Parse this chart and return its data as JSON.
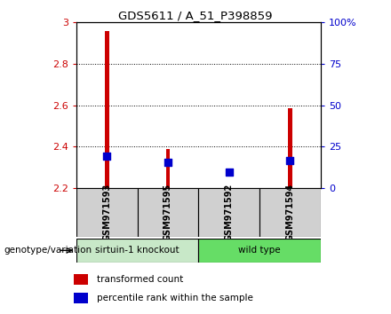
{
  "title": "GDS5611 / A_51_P398859",
  "samples": [
    "GSM971593",
    "GSM971595",
    "GSM971592",
    "GSM971594"
  ],
  "red_values": [
    2.955,
    2.39,
    2.195,
    2.585
  ],
  "blue_values": [
    2.355,
    2.325,
    2.28,
    2.335
  ],
  "ylim_left": [
    2.2,
    3.0
  ],
  "ylim_right": [
    0,
    100
  ],
  "yticks_left": [
    2.2,
    2.4,
    2.6,
    2.8,
    3.0
  ],
  "ytick_labels_left": [
    "2.2",
    "2.4",
    "2.6",
    "2.8",
    "3"
  ],
  "yticks_right": [
    0,
    25,
    50,
    75,
    100
  ],
  "ytick_labels_right": [
    "0",
    "25",
    "50",
    "75",
    "100%"
  ],
  "grid_lines": [
    2.4,
    2.6,
    2.8
  ],
  "group1_label": "sirtuin-1 knockout",
  "group2_label": "wild type",
  "group1_color": "#c8e8c8",
  "group2_color": "#66dd66",
  "sample_bg_color": "#d0d0d0",
  "bar_color": "#cc0000",
  "square_color": "#0000cc",
  "bar_width": 0.07,
  "square_size": 40,
  "left_tick_color": "#cc0000",
  "right_tick_color": "#0000cc",
  "legend_red_label": "transformed count",
  "legend_blue_label": "percentile rank within the sample",
  "genotype_label": "genotype/variation"
}
